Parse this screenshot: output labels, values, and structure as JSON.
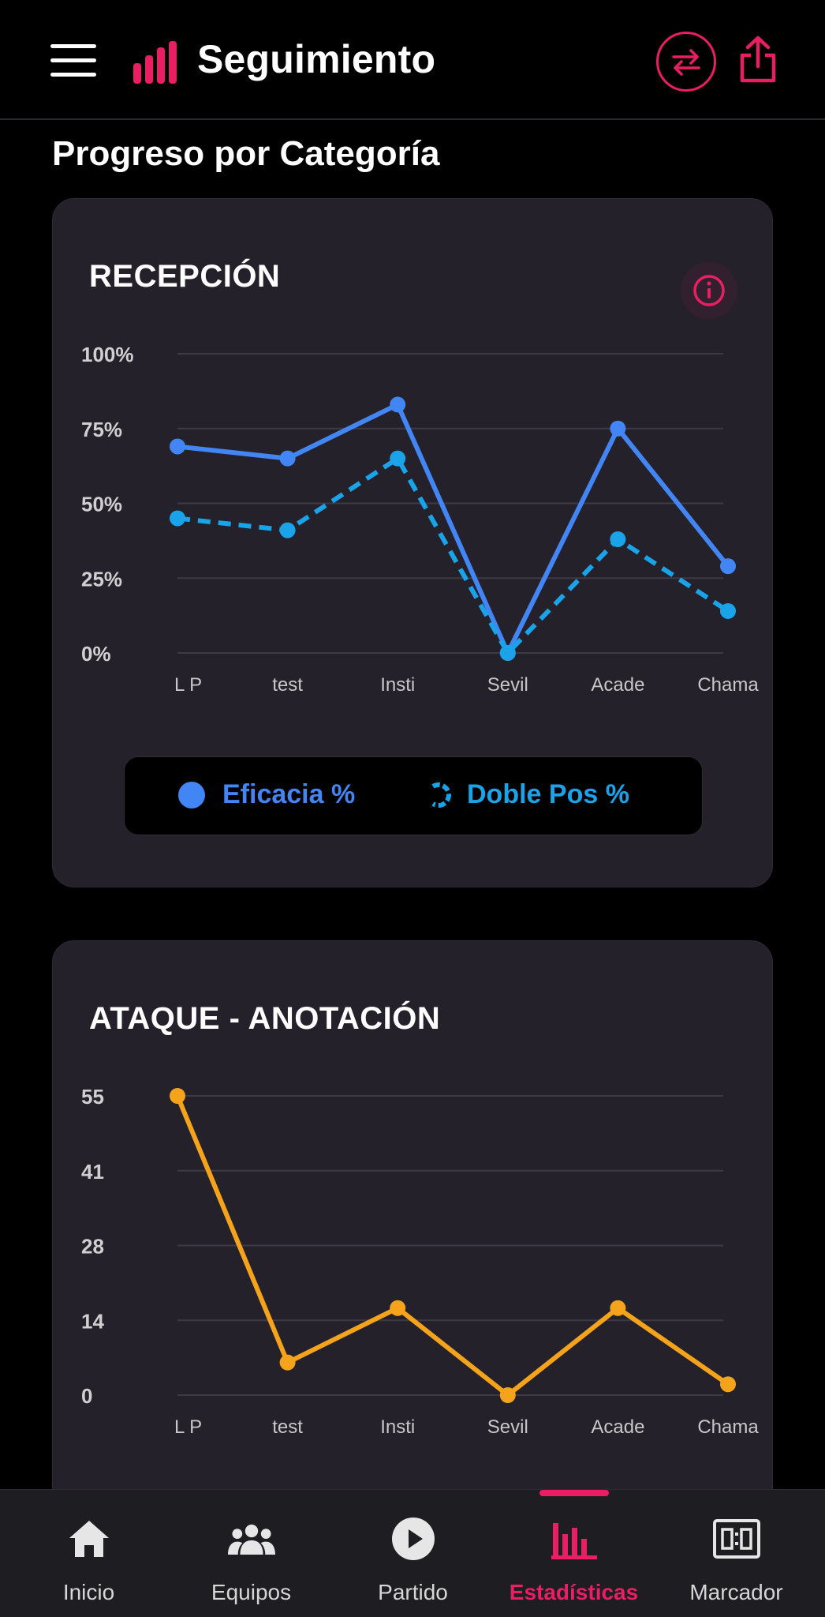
{
  "header": {
    "title": "Seguimiento"
  },
  "section_title": "Progreso por Categoría",
  "colors": {
    "accent": "#e91e63",
    "series_eficacia": "#4285f4",
    "series_doble": "#1aa3e8",
    "series_anotacion": "#f5a31a",
    "card_bg": "#24212b"
  },
  "charts": {
    "recepcion": {
      "title": "RECEPCIÓN",
      "legend": {
        "eficacia": "Eficacia %",
        "doble": "Doble Pos %"
      }
    },
    "ataque": {
      "title": "ATAQUE - ANOTACIÓN"
    }
  },
  "chart_data": [
    {
      "type": "line",
      "title": "RECEPCIÓN",
      "categories": [
        "L P",
        "test",
        "Insti",
        "Sevil",
        "Acade",
        "Chama"
      ],
      "y_ticks": [
        "100%",
        "75%",
        "50%",
        "25%",
        "0%"
      ],
      "ylim": [
        0,
        100
      ],
      "grid": true,
      "legend_position": "bottom",
      "series": [
        {
          "name": "Eficacia %",
          "style": "solid",
          "values": [
            69,
            65,
            83,
            0,
            75,
            29
          ]
        },
        {
          "name": "Doble Pos %",
          "style": "dashed",
          "values": [
            45,
            41,
            65,
            0,
            38,
            14
          ]
        }
      ]
    },
    {
      "type": "line",
      "title": "ATAQUE - ANOTACIÓN",
      "categories": [
        "L P",
        "test",
        "Insti",
        "Sevil",
        "Acade",
        "Chama"
      ],
      "y_ticks": [
        "55",
        "41",
        "28",
        "14",
        "0"
      ],
      "ylim": [
        0,
        55
      ],
      "grid": true,
      "series": [
        {
          "values": [
            55,
            6,
            16,
            0,
            16,
            2
          ]
        }
      ]
    }
  ],
  "nav": {
    "items": [
      {
        "label": "Inicio",
        "icon": "home-icon"
      },
      {
        "label": "Equipos",
        "icon": "group-icon"
      },
      {
        "label": "Partido",
        "icon": "play-icon"
      },
      {
        "label": "Estadísticas",
        "icon": "bar-chart-icon",
        "active": true
      },
      {
        "label": "Marcador",
        "icon": "scoreboard-icon"
      }
    ]
  }
}
